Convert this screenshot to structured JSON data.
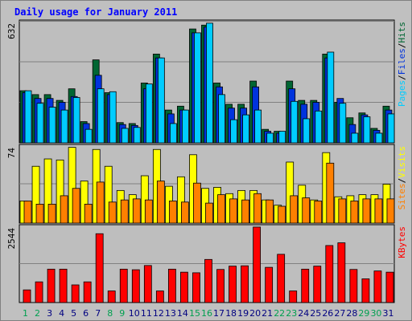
{
  "chart_data": {
    "type": "bar",
    "title": "Daily usage for January 2011",
    "x": [
      "1",
      "2",
      "3",
      "4",
      "5",
      "6",
      "7",
      "8",
      "9",
      "10",
      "11",
      "12",
      "13",
      "14",
      "15",
      "16",
      "17",
      "18",
      "19",
      "20",
      "21",
      "22",
      "23",
      "24",
      "25",
      "26",
      "27",
      "28",
      "29",
      "30",
      "31"
    ],
    "weekend_days": [
      "1",
      "2",
      "8",
      "9",
      "15",
      "16",
      "22",
      "23",
      "29",
      "30"
    ],
    "panels": [
      {
        "id": "top",
        "ymax_label": "632",
        "ylim": [
          0,
          632
        ],
        "series": [
          {
            "name": "Hits",
            "color": "#006633",
            "values": [
              270,
              250,
              250,
              220,
              280,
              110,
              430,
              260,
              105,
              100,
              310,
              460,
              170,
              190,
              590,
              610,
              310,
              200,
              200,
              320,
              70,
              60,
              320,
              220,
              220,
              460,
              210,
              130,
              155,
              75,
              190
            ]
          },
          {
            "name": "Files",
            "color": "#0033dd",
            "values": [
              260,
              230,
              230,
              210,
              240,
              100,
              350,
              250,
              95,
              90,
              280,
              440,
              150,
              170,
              570,
              600,
              290,
              180,
              180,
              290,
              60,
              50,
              280,
              200,
              210,
              440,
              230,
              95,
              145,
              65,
              170
            ]
          },
          {
            "name": "Pages",
            "color": "#00ccff",
            "values": [
              270,
              205,
              185,
              170,
              235,
              70,
              280,
              265,
              75,
              80,
              305,
              440,
              100,
              170,
              570,
              620,
              250,
              120,
              145,
              170,
              50,
              60,
              215,
              125,
              165,
              470,
              205,
              50,
              135,
              50,
              150
            ]
          }
        ]
      },
      {
        "id": "middle",
        "ymax_label": "74",
        "ylim": [
          0,
          74
        ],
        "series": [
          {
            "name": "Visits",
            "color": "#ffff00",
            "values": [
              21,
              54,
              61,
              60,
              72,
              40,
              70,
              54,
              31,
              27,
              45,
              70,
              35,
              44,
              65,
              33,
              34,
              28,
              31,
              31,
              22,
              17,
              58,
              36,
              22,
              67,
              25,
              26,
              27,
              27,
              37
            ]
          },
          {
            "name": "Sites",
            "color": "#ff8000",
            "values": [
              21,
              18,
              18,
              26,
              33,
              18,
              39,
              20,
              22,
              23,
              22,
              40,
              21,
              20,
              38,
              19,
              27,
              23,
              22,
              28,
              22,
              16,
              26,
              24,
              21,
              57,
              23,
              21,
              23,
              23,
              23
            ]
          }
        ]
      },
      {
        "id": "bottom",
        "ymax_label": "2544",
        "ylim": [
          0,
          2544
        ],
        "series": [
          {
            "name": "KBytes",
            "color": "#ff0000",
            "values": [
              418,
              683,
              1103,
              1103,
              583,
              683,
              2273,
              383,
              1103,
              1083,
              1223,
              383,
              1103,
              1003,
              983,
              1423,
              1093,
              1203,
              1213,
              2493,
              1163,
              1593,
              383,
              1103,
              1203,
              1883,
              1973,
              1093,
              783,
              1043,
              1003
            ]
          }
        ]
      }
    ],
    "legend": {
      "top": [
        "Pages",
        "/",
        "Files",
        "/",
        "Hits"
      ],
      "middle": [
        "Sites",
        "/",
        "Visits"
      ],
      "bottom": [
        "KBytes"
      ]
    }
  },
  "colors": {
    "background": "#ffffff",
    "frame": "#c0c0c0",
    "plot": "#bebebe",
    "title": "#0000ff",
    "weekday_label": "#000080",
    "weekend_label": "#00a050"
  }
}
